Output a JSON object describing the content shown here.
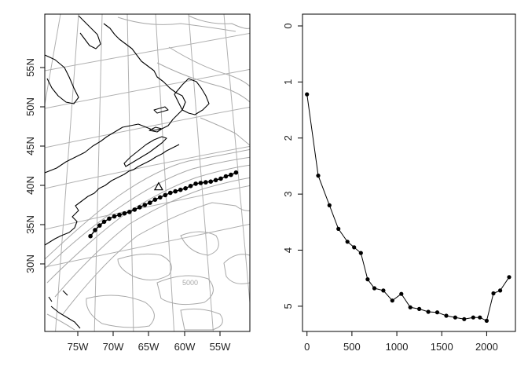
{
  "chart_data": [
    {
      "type": "map",
      "x_tick_labels": [
        "75W",
        "70W",
        "65W",
        "60W",
        "55W"
      ],
      "y_tick_labels": [
        "30N",
        "35N",
        "40N",
        "45N",
        "50N",
        "55N"
      ],
      "bathymetry_label": "5000",
      "station_marker": {
        "lon": -64.0,
        "lat": 39.7,
        "shape": "open-triangle"
      },
      "track": {
        "lon": [
          -73.2,
          -72.6,
          -72.0,
          -71.4,
          -70.7,
          -70.0,
          -69.3,
          -68.6,
          -67.9,
          -67.2,
          -66.5,
          -65.8,
          -65.1,
          -64.4,
          -63.7,
          -63.0,
          -62.3,
          -61.6,
          -60.9,
          -60.2,
          -59.5,
          -58.8,
          -58.1,
          -57.4,
          -56.7,
          -56.0,
          -55.3,
          -54.6,
          -53.9,
          -53.2
        ],
        "lat": [
          34.6,
          35.3,
          35.8,
          36.2,
          36.5,
          36.7,
          36.8,
          36.9,
          37.0,
          37.2,
          37.4,
          37.6,
          37.8,
          38.1,
          38.3,
          38.5,
          38.7,
          38.8,
          38.9,
          39.0,
          39.2,
          39.4,
          39.4,
          39.4,
          39.4,
          39.5,
          39.6,
          39.8,
          39.9,
          40.1
        ]
      },
      "colors": {
        "coast": "#000000",
        "graticule": "#b0b0b0",
        "bathymetry": "#a8a8a8",
        "track": "#000000"
      }
    },
    {
      "type": "line",
      "x": [
        0,
        125,
        250,
        350,
        450,
        525,
        600,
        675,
        750,
        850,
        950,
        1050,
        1150,
        1250,
        1350,
        1450,
        1550,
        1650,
        1750,
        1850,
        1925,
        2000,
        2075,
        2150,
        2250
      ],
      "y": [
        1.22,
        2.67,
        3.2,
        3.62,
        3.85,
        3.95,
        4.05,
        4.52,
        4.68,
        4.72,
        4.9,
        4.78,
        5.02,
        5.05,
        5.1,
        5.11,
        5.17,
        5.2,
        5.23,
        5.2,
        5.2,
        5.26,
        4.77,
        4.72,
        4.48
      ],
      "xlim": [
        -50,
        2320
      ],
      "ylim": [
        0,
        5.45
      ],
      "y_reversed": true,
      "x_ticks": [
        0,
        500,
        1000,
        1500,
        2000
      ],
      "y_ticks": [
        0,
        1,
        2,
        3,
        4,
        5
      ],
      "colors": {
        "line": "#000000",
        "points": "#000000"
      }
    }
  ]
}
